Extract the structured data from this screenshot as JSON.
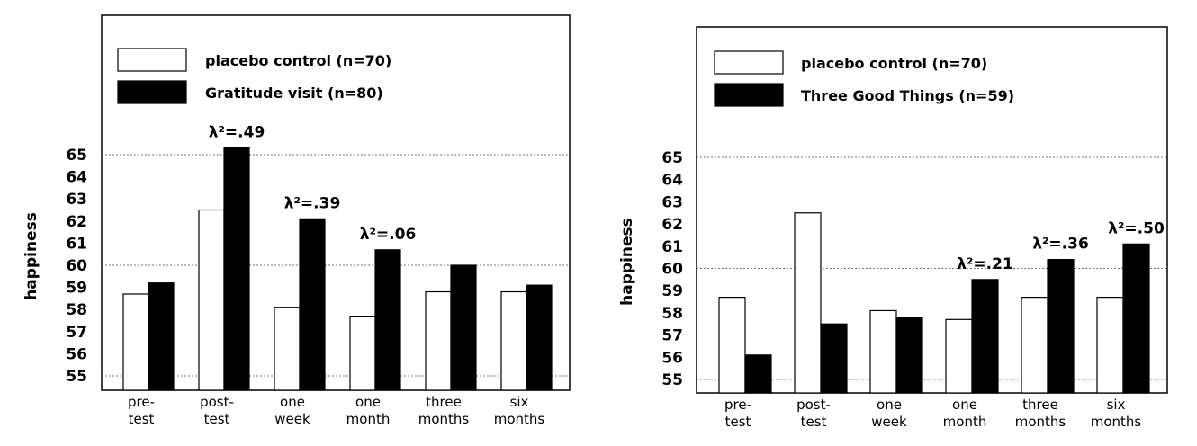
{
  "colors": {
    "control": "#ffffff",
    "treatment": "#000000",
    "frame": "#000000",
    "grid": "#777777"
  },
  "chart_data": [
    {
      "type": "bar",
      "ylabel": "happiness",
      "ylim": [
        55,
        65
      ],
      "yticks": [
        "55",
        "56",
        "57",
        "58",
        "59",
        "60",
        "61",
        "62",
        "63",
        "64",
        "65"
      ],
      "reference_lines": [
        55,
        60,
        65
      ],
      "categories": [
        [
          "pre-",
          "test"
        ],
        [
          "post-",
          "test"
        ],
        [
          "one",
          "week"
        ],
        [
          "one",
          "month"
        ],
        [
          "three",
          "months"
        ],
        [
          "six",
          "months"
        ]
      ],
      "legend_placement": "top-left",
      "series": [
        {
          "name": "placebo control (n=70)",
          "color": "#ffffff",
          "values": [
            58.7,
            62.5,
            58.1,
            57.7,
            58.8,
            58.8
          ]
        },
        {
          "name": "Gratitude visit (n=80)",
          "color": "#000000",
          "values": [
            59.2,
            65.3,
            62.1,
            60.7,
            60.0,
            59.1
          ]
        }
      ],
      "annotations": [
        {
          "category_index": 1,
          "label": "λ²=.49"
        },
        {
          "category_index": 2,
          "label": "λ²=.39"
        },
        {
          "category_index": 3,
          "label": "λ²=.06"
        }
      ]
    },
    {
      "type": "bar",
      "ylabel": "happiness",
      "ylim": [
        55,
        65
      ],
      "yticks": [
        "55",
        "56",
        "57",
        "58",
        "59",
        "60",
        "61",
        "62",
        "63",
        "64",
        "65"
      ],
      "reference_lines": [
        55,
        60,
        65
      ],
      "categories": [
        [
          "pre-",
          "test"
        ],
        [
          "post-",
          "test"
        ],
        [
          "one",
          "week"
        ],
        [
          "one",
          "month"
        ],
        [
          "three",
          "months"
        ],
        [
          "six",
          "months"
        ]
      ],
      "legend_placement": "top-left",
      "series": [
        {
          "name": "placebo control (n=70)",
          "color": "#ffffff",
          "values": [
            58.7,
            62.5,
            58.1,
            57.7,
            58.7,
            58.7
          ]
        },
        {
          "name": "Three Good Things (n=59)",
          "color": "#000000",
          "values": [
            56.1,
            57.5,
            57.8,
            59.5,
            60.4,
            61.1
          ]
        }
      ],
      "annotations": [
        {
          "category_index": 3,
          "label": "λ²=.21"
        },
        {
          "category_index": 4,
          "label": "λ²=.36"
        },
        {
          "category_index": 5,
          "label": "λ²=.50"
        }
      ]
    }
  ]
}
